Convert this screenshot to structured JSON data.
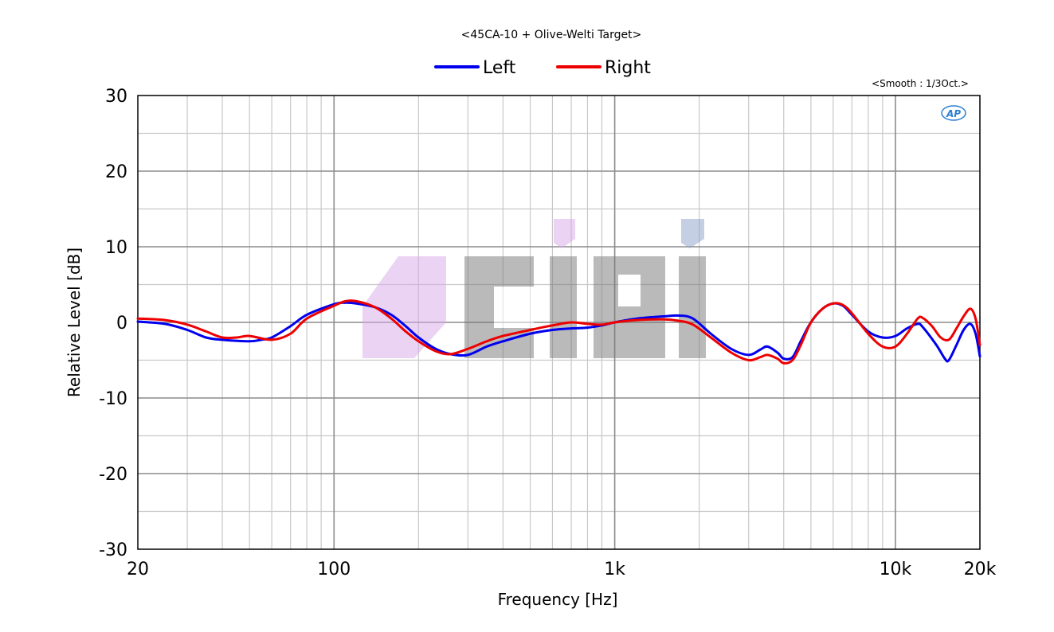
{
  "chart_data": {
    "type": "line",
    "title": "<45CA-10 + Olive-Welti Target>",
    "subtitle": "<Smooth : 1/3Oct.>",
    "xlabel": "Frequency [Hz]",
    "ylabel": "Relative Level [dB]",
    "xscale": "log",
    "xlim": [
      20,
      20000
    ],
    "ylim": [
      -30,
      30
    ],
    "grid": true,
    "legend_position": "top",
    "x_ticks": [
      {
        "value": 20,
        "label": "20"
      },
      {
        "value": 100,
        "label": "100"
      },
      {
        "value": 1000,
        "label": "1k"
      },
      {
        "value": 10000,
        "label": "10k"
      },
      {
        "value": 20000,
        "label": "20k"
      }
    ],
    "y_ticks": [
      {
        "value": 30,
        "label": "30"
      },
      {
        "value": 20,
        "label": "20"
      },
      {
        "value": 10,
        "label": "10"
      },
      {
        "value": 0,
        "label": "0"
      },
      {
        "value": -10,
        "label": "-10"
      },
      {
        "value": -20,
        "label": "-20"
      },
      {
        "value": -30,
        "label": "-30"
      }
    ],
    "series": [
      {
        "name": "Left",
        "color": "#0000ee",
        "points": [
          [
            20,
            0.1
          ],
          [
            25,
            -0.2
          ],
          [
            30,
            -1.0
          ],
          [
            35,
            -2.0
          ],
          [
            40,
            -2.3
          ],
          [
            50,
            -2.5
          ],
          [
            55,
            -2.3
          ],
          [
            60,
            -2.0
          ],
          [
            70,
            -0.5
          ],
          [
            80,
            1.0
          ],
          [
            100,
            2.4
          ],
          [
            110,
            2.6
          ],
          [
            120,
            2.5
          ],
          [
            140,
            2.0
          ],
          [
            160,
            1.0
          ],
          [
            180,
            -0.5
          ],
          [
            200,
            -2.0
          ],
          [
            230,
            -3.5
          ],
          [
            260,
            -4.2
          ],
          [
            300,
            -4.3
          ],
          [
            350,
            -3.2
          ],
          [
            400,
            -2.5
          ],
          [
            500,
            -1.5
          ],
          [
            600,
            -1.0
          ],
          [
            700,
            -0.8
          ],
          [
            800,
            -0.7
          ],
          [
            900,
            -0.4
          ],
          [
            1000,
            0.0
          ],
          [
            1200,
            0.5
          ],
          [
            1500,
            0.8
          ],
          [
            1700,
            0.9
          ],
          [
            1900,
            0.5
          ],
          [
            2200,
            -1.5
          ],
          [
            2600,
            -3.5
          ],
          [
            3000,
            -4.3
          ],
          [
            3300,
            -3.6
          ],
          [
            3500,
            -3.2
          ],
          [
            3800,
            -4.0
          ],
          [
            4000,
            -4.8
          ],
          [
            4300,
            -4.6
          ],
          [
            4600,
            -2.5
          ],
          [
            5000,
            0.0
          ],
          [
            5500,
            1.8
          ],
          [
            6000,
            2.5
          ],
          [
            6500,
            2.2
          ],
          [
            7000,
            1.0
          ],
          [
            8000,
            -1.2
          ],
          [
            9000,
            -2.0
          ],
          [
            10000,
            -1.8
          ],
          [
            11000,
            -0.8
          ],
          [
            12000,
            -0.2
          ],
          [
            12500,
            -0.6
          ],
          [
            14000,
            -3.0
          ],
          [
            15000,
            -4.8
          ],
          [
            15500,
            -5.0
          ],
          [
            16500,
            -3.0
          ],
          [
            17500,
            -1.0
          ],
          [
            18500,
            -0.2
          ],
          [
            19300,
            -1.5
          ],
          [
            20000,
            -4.5
          ]
        ]
      },
      {
        "name": "Right",
        "color": "#ee0000",
        "points": [
          [
            20,
            0.5
          ],
          [
            25,
            0.3
          ],
          [
            30,
            -0.3
          ],
          [
            35,
            -1.2
          ],
          [
            40,
            -2.0
          ],
          [
            45,
            -2.0
          ],
          [
            50,
            -1.8
          ],
          [
            60,
            -2.3
          ],
          [
            70,
            -1.5
          ],
          [
            80,
            0.5
          ],
          [
            100,
            2.2
          ],
          [
            110,
            2.8
          ],
          [
            120,
            2.8
          ],
          [
            140,
            2.0
          ],
          [
            160,
            0.5
          ],
          [
            180,
            -1.2
          ],
          [
            200,
            -2.5
          ],
          [
            230,
            -3.8
          ],
          [
            260,
            -4.2
          ],
          [
            300,
            -3.5
          ],
          [
            350,
            -2.5
          ],
          [
            400,
            -1.8
          ],
          [
            500,
            -1.0
          ],
          [
            600,
            -0.4
          ],
          [
            700,
            0.0
          ],
          [
            800,
            -0.2
          ],
          [
            900,
            -0.3
          ],
          [
            1000,
            0.0
          ],
          [
            1200,
            0.3
          ],
          [
            1500,
            0.4
          ],
          [
            1700,
            0.2
          ],
          [
            1900,
            -0.3
          ],
          [
            2200,
            -2.0
          ],
          [
            2600,
            -4.0
          ],
          [
            3000,
            -5.0
          ],
          [
            3300,
            -4.6
          ],
          [
            3500,
            -4.3
          ],
          [
            3800,
            -4.8
          ],
          [
            4000,
            -5.4
          ],
          [
            4300,
            -5.0
          ],
          [
            4600,
            -3.0
          ],
          [
            5000,
            0.0
          ],
          [
            5500,
            1.8
          ],
          [
            6000,
            2.5
          ],
          [
            6500,
            2.3
          ],
          [
            7000,
            1.2
          ],
          [
            8000,
            -1.5
          ],
          [
            9000,
            -3.2
          ],
          [
            10000,
            -3.2
          ],
          [
            11000,
            -1.5
          ],
          [
            12000,
            0.5
          ],
          [
            12500,
            0.6
          ],
          [
            13500,
            -0.5
          ],
          [
            14500,
            -2.0
          ],
          [
            15500,
            -2.3
          ],
          [
            16500,
            -0.8
          ],
          [
            17500,
            0.8
          ],
          [
            18500,
            1.8
          ],
          [
            19300,
            0.5
          ],
          [
            20000,
            -3.0
          ]
        ]
      }
    ]
  },
  "brand": {
    "ap_logo_text": "AP"
  }
}
